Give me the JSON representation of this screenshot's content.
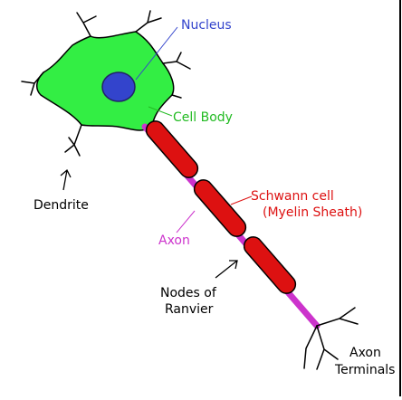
{
  "diagram": {
    "labels": {
      "nucleus": "Nucleus",
      "cell_body": "Cell Body",
      "dendrite": "Dendrite",
      "schwann_line1": "Schwann cell",
      "schwann_line2": "(Myelin Sheath)",
      "axon": "Axon",
      "nodes_line1": "Nodes of",
      "nodes_line2": "Ranvier",
      "terminals_line1": "Axon",
      "terminals_line2": "Terminals"
    },
    "colors": {
      "cell_body": "#33ee44",
      "nucleus": "#3344cc",
      "myelin": "#dd1111",
      "axon": "#cc33cc",
      "nucleus_text": "#3344cc",
      "cell_body_text": "#22bb22",
      "schwann_text": "#dd1111",
      "axon_text": "#cc33cc"
    }
  }
}
